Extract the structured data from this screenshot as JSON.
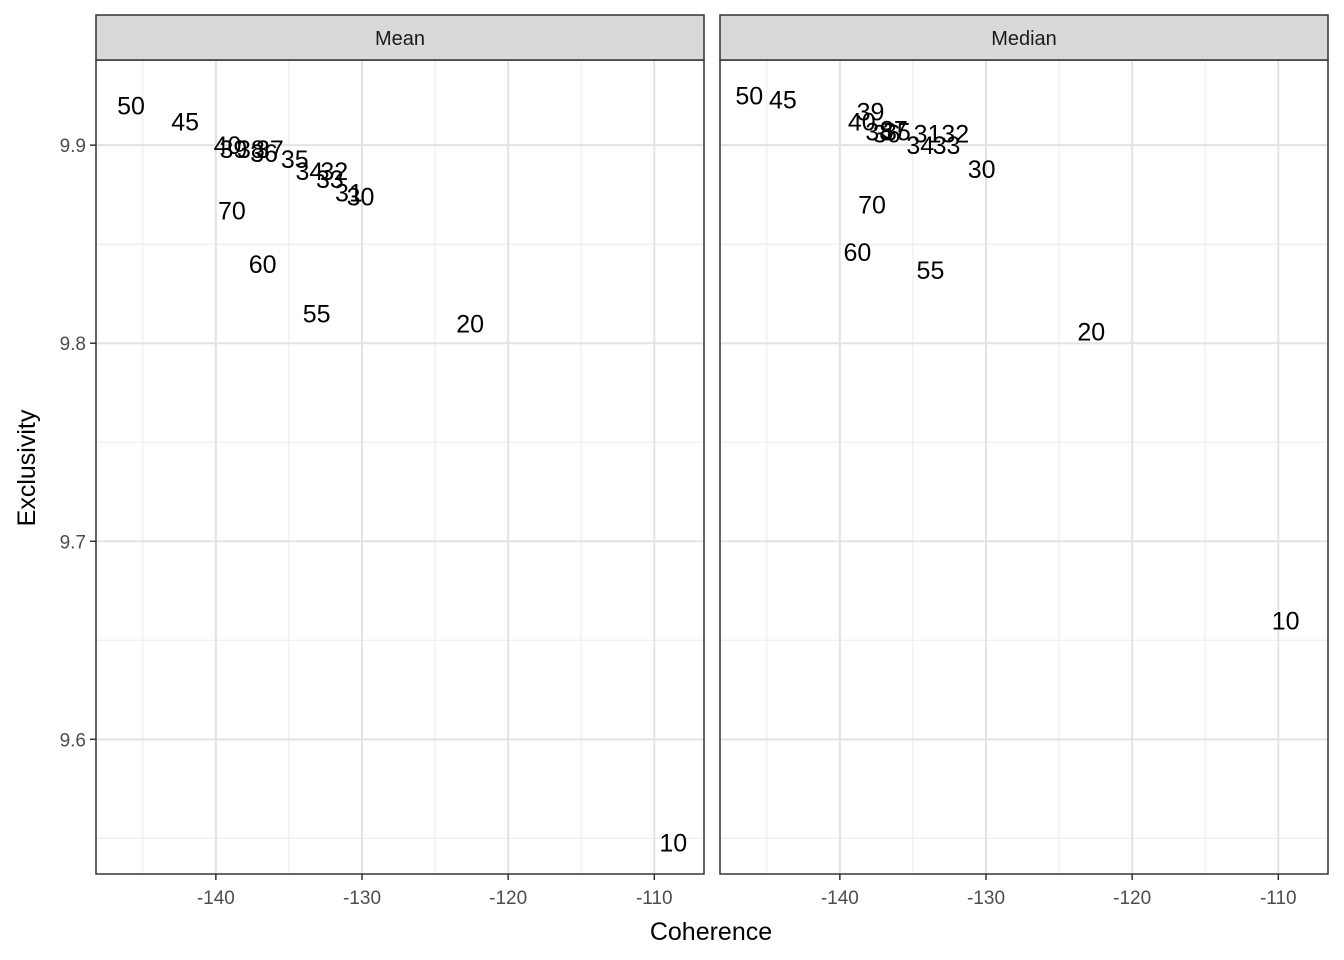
{
  "chart_data": {
    "type": "scatter",
    "title": "",
    "xlabel": "Coherence",
    "ylabel": "Exclusivity",
    "xlim": [
      -148.2,
      -106.6
    ],
    "ylim": [
      9.532,
      9.943
    ],
    "x_ticks": [
      -140,
      -130,
      -120,
      -110
    ],
    "y_ticks": [
      9.6,
      9.7,
      9.8,
      9.9
    ],
    "x_tick_labels": [
      "-140",
      "-130",
      "-120",
      "-110"
    ],
    "y_tick_labels": [
      "9.6",
      "9.7",
      "9.8",
      "9.9"
    ],
    "grid": true,
    "marker": "text labels (number of topics)",
    "panels": [
      {
        "strip": "Mean",
        "points": [
          {
            "label": "50",
            "x": -145.8,
            "y": 9.92
          },
          {
            "label": "45",
            "x": -142.1,
            "y": 9.912
          },
          {
            "label": "40",
            "x": -139.2,
            "y": 9.9
          },
          {
            "label": "39",
            "x": -138.8,
            "y": 9.898
          },
          {
            "label": "38",
            "x": -137.6,
            "y": 9.898
          },
          {
            "label": "37",
            "x": -136.3,
            "y": 9.898
          },
          {
            "label": "36",
            "x": -136.7,
            "y": 9.896
          },
          {
            "label": "35",
            "x": -134.6,
            "y": 9.893
          },
          {
            "label": "34",
            "x": -133.6,
            "y": 9.887
          },
          {
            "label": "33",
            "x": -132.2,
            "y": 9.883
          },
          {
            "label": "32",
            "x": -131.9,
            "y": 9.887
          },
          {
            "label": "31",
            "x": -130.9,
            "y": 9.876
          },
          {
            "label": "30",
            "x": -130.1,
            "y": 9.874
          },
          {
            "label": "70",
            "x": -138.9,
            "y": 9.867
          },
          {
            "label": "60",
            "x": -136.8,
            "y": 9.84
          },
          {
            "label": "55",
            "x": -133.1,
            "y": 9.815
          },
          {
            "label": "20",
            "x": -122.6,
            "y": 9.81
          },
          {
            "label": "10",
            "x": -108.7,
            "y": 9.548
          }
        ]
      },
      {
        "strip": "Median",
        "points": [
          {
            "label": "50",
            "x": -146.2,
            "y": 9.925
          },
          {
            "label": "45",
            "x": -143.9,
            "y": 9.923
          },
          {
            "label": "39",
            "x": -137.9,
            "y": 9.917
          },
          {
            "label": "40",
            "x": -138.5,
            "y": 9.912
          },
          {
            "label": "38",
            "x": -137.3,
            "y": 9.907
          },
          {
            "label": "37",
            "x": -136.3,
            "y": 9.908
          },
          {
            "label": "36",
            "x": -136.8,
            "y": 9.906
          },
          {
            "label": "35",
            "x": -136.1,
            "y": 9.907
          },
          {
            "label": "31",
            "x": -134.0,
            "y": 9.906
          },
          {
            "label": "32",
            "x": -132.1,
            "y": 9.906
          },
          {
            "label": "34",
            "x": -134.5,
            "y": 9.9
          },
          {
            "label": "33",
            "x": -132.7,
            "y": 9.9
          },
          {
            "label": "30",
            "x": -130.3,
            "y": 9.888
          },
          {
            "label": "70",
            "x": -137.8,
            "y": 9.87
          },
          {
            "label": "60",
            "x": -138.8,
            "y": 9.846
          },
          {
            "label": "55",
            "x": -133.8,
            "y": 9.837
          },
          {
            "label": "20",
            "x": -122.8,
            "y": 9.806
          },
          {
            "label": "10",
            "x": -109.5,
            "y": 9.66
          }
        ]
      }
    ]
  }
}
